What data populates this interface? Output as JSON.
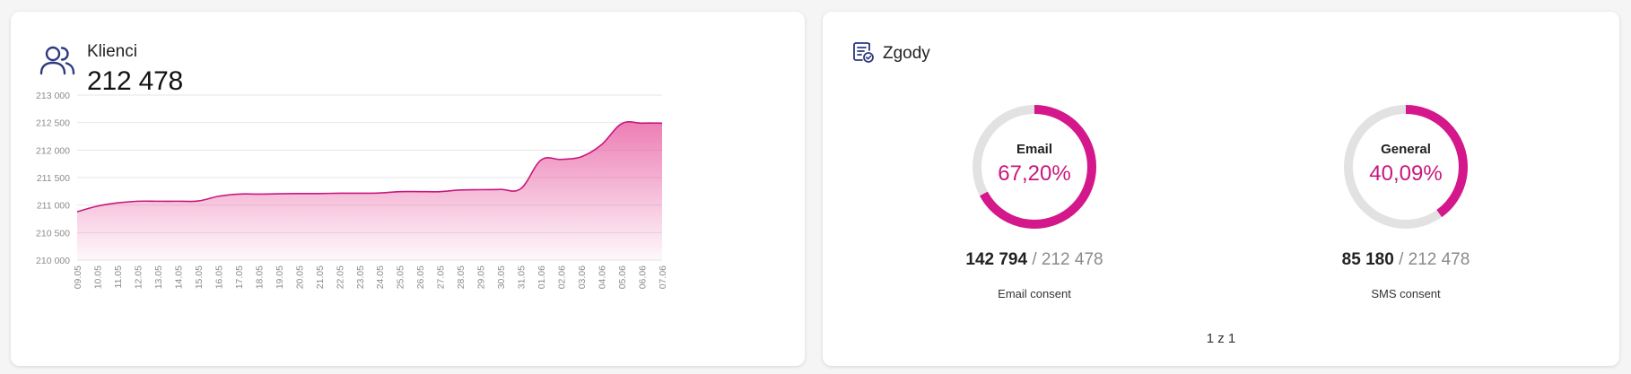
{
  "clients": {
    "title": "Klienci",
    "total": "212 478",
    "icon": "users-icon"
  },
  "chart_data": {
    "type": "area",
    "x": [
      "09.05",
      "10.05",
      "11.05",
      "12.05",
      "13.05",
      "14.05",
      "15.05",
      "16.05",
      "17.05",
      "18.05",
      "19.05",
      "20.05",
      "21.05",
      "22.05",
      "23.05",
      "24.05",
      "25.05",
      "26.05",
      "27.05",
      "28.05",
      "29.05",
      "30.05",
      "31.05",
      "01.06",
      "02.06",
      "03.06",
      "04.06",
      "05.06",
      "06.06",
      "07.06"
    ],
    "series": [
      {
        "values": [
          210880,
          210980,
          211040,
          211070,
          211070,
          211070,
          211075,
          211160,
          211200,
          211200,
          211205,
          211210,
          211210,
          211215,
          211215,
          211220,
          211245,
          211245,
          211245,
          211275,
          211280,
          211285,
          211300,
          211820,
          211830,
          211880,
          212100,
          212480,
          212490,
          212490
        ]
      }
    ],
    "ylim": [
      210000,
      213000
    ],
    "yticks": [
      "210 000",
      "210 500",
      "211 000",
      "211 500",
      "212 000",
      "212 500",
      "213 000"
    ],
    "ytick_values": [
      210000,
      210500,
      211000,
      211500,
      212000,
      212500,
      213000
    ],
    "grid": true,
    "title": "",
    "xlabel": "",
    "ylabel": "",
    "line_color": "#c8187c",
    "fill_color": "#e7539c"
  },
  "consents": {
    "title": "Zgody",
    "icon": "document-check-icon",
    "items": [
      {
        "label": "Email",
        "percent_text": "67,20%",
        "fraction": 0.672,
        "count": "142 794",
        "total": "/ 212 478",
        "sublabel": "Email consent"
      },
      {
        "label": "General",
        "percent_text": "40,09%",
        "fraction": 0.4009,
        "count": "85 180",
        "total": "/ 212 478",
        "sublabel": "SMS consent"
      }
    ],
    "pager": "1 z 1",
    "accent_color": "#d4178a",
    "track_color": "#e2e2e2"
  }
}
